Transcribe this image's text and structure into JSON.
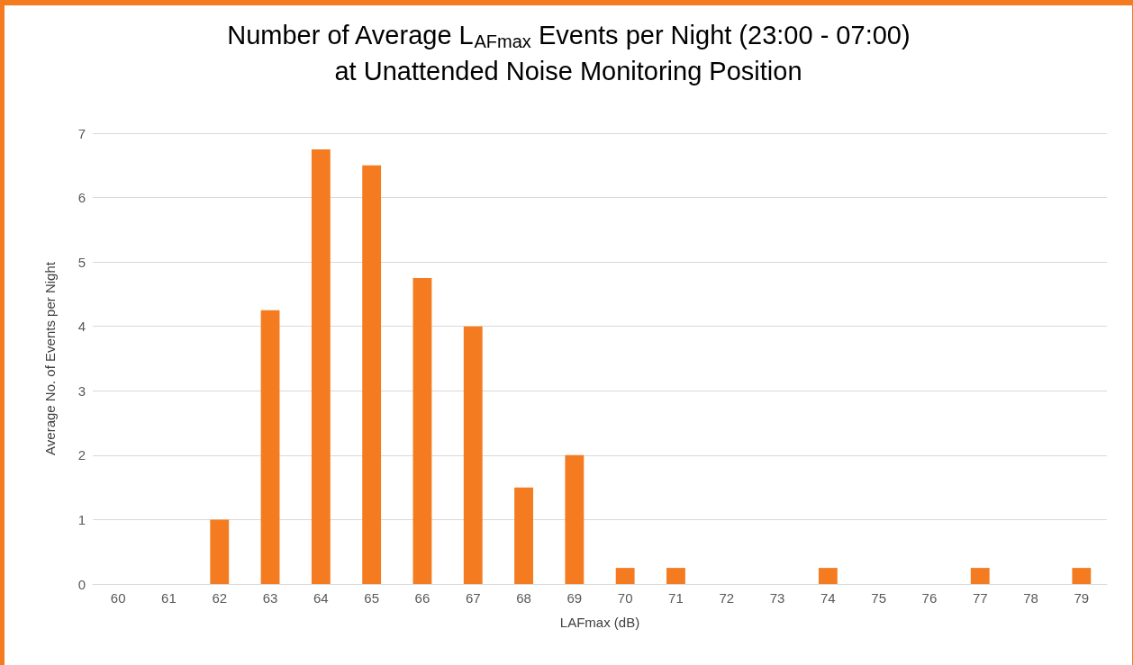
{
  "chart_data": {
    "type": "bar",
    "title": "Number of Average L$_{AFmax}$ Events per Night (23:00 - 07:00)\nat Unattended Noise Monitoring Position",
    "xlabel": "LAFmax (dB)",
    "ylabel": "Average No. of Events per Night",
    "categories": [
      "60",
      "61",
      "62",
      "63",
      "64",
      "65",
      "66",
      "67",
      "68",
      "69",
      "70",
      "71",
      "72",
      "73",
      "74",
      "75",
      "76",
      "77",
      "78",
      "79"
    ],
    "values": [
      0,
      0,
      1,
      4.25,
      6.75,
      6.5,
      4.75,
      4,
      1.5,
      2,
      0.25,
      0.25,
      0,
      0,
      0.25,
      0,
      0,
      0.25,
      0,
      0.25
    ],
    "color": "#f47b20",
    "ylim": [
      0,
      7
    ],
    "yticks": [
      0,
      1,
      2,
      3,
      4,
      5,
      6,
      7
    ],
    "grid": "y"
  }
}
